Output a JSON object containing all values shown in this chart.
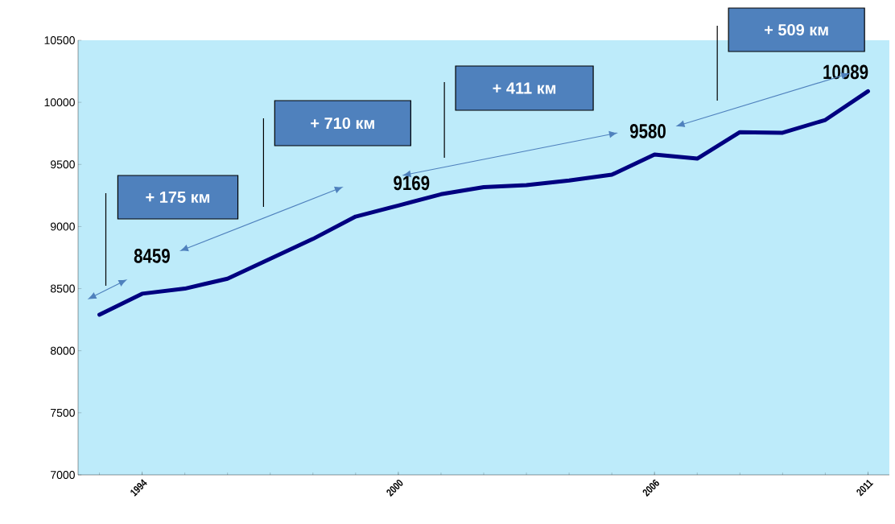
{
  "chart_data": {
    "type": "line",
    "categories": [
      null,
      "1994",
      null,
      null,
      null,
      null,
      null,
      "2000",
      null,
      null,
      null,
      null,
      null,
      "2006",
      null,
      null,
      null,
      null,
      "2011"
    ],
    "series": [
      {
        "color": "#000080",
        "values": [
          8290,
          8459,
          8500,
          8580,
          8740,
          8900,
          9080,
          9169,
          9260,
          9317,
          9333,
          9370,
          9417,
          9580,
          9547,
          9760,
          9755,
          9858,
          10089
        ]
      }
    ],
    "ylim": [
      7000,
      10500
    ],
    "yticks": [
      7000,
      7500,
      8000,
      8500,
      9000,
      9500,
      10000,
      10500
    ],
    "marker": "none",
    "line_style": "solid",
    "annotations": [
      {
        "text": "8459",
        "x": "1994",
        "y": 8459
      },
      {
        "text": "9169",
        "x": "2000",
        "y": 9169
      },
      {
        "text": "9580",
        "x": "2006",
        "y": 9580
      },
      {
        "text": "10089",
        "x": "2011",
        "y": 10089
      },
      "+ 175 км",
      "+ 710 км",
      "+ 411 км",
      "+ 509 км"
    ]
  }
}
